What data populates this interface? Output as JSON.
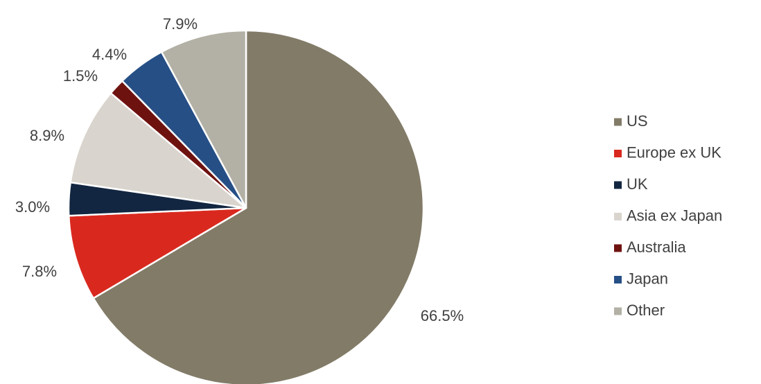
{
  "chart_data": {
    "type": "pie",
    "title": "",
    "start_angle_deg": 0,
    "direction": "clockwise",
    "legend_position": "right",
    "slices": [
      {
        "label": "US",
        "value": 66.5,
        "display": "66.5%",
        "color": "#827b68"
      },
      {
        "label": "Europe ex UK",
        "value": 7.8,
        "display": "7.8%",
        "color": "#d9291f"
      },
      {
        "label": "UK",
        "value": 3.0,
        "display": "3.0%",
        "color": "#122641"
      },
      {
        "label": "Asia ex Japan",
        "value": 8.9,
        "display": "8.9%",
        "color": "#d9d5ce"
      },
      {
        "label": "Australia",
        "value": 1.5,
        "display": "1.5%",
        "color": "#6e1210"
      },
      {
        "label": "Japan",
        "value": 4.4,
        "display": "4.4%",
        "color": "#264f86"
      },
      {
        "label": "Other",
        "value": 7.9,
        "display": "7.9%",
        "color": "#b3b1a5"
      }
    ]
  }
}
